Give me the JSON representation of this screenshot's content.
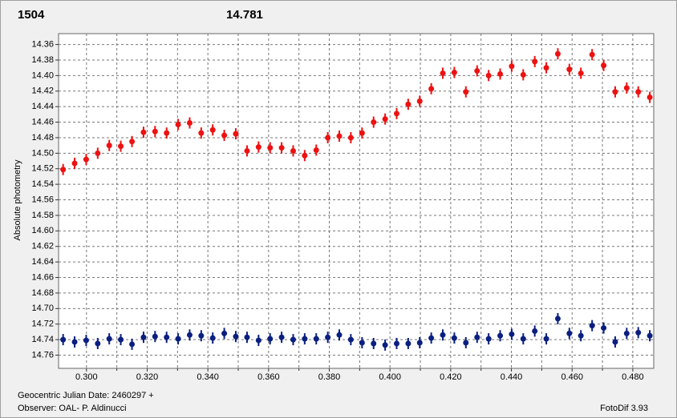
{
  "chart_data": {
    "type": "scatter",
    "series": [
      {
        "name": "1504",
        "color": "#ee1111",
        "values": [
          14.521,
          14.513,
          14.508,
          14.5,
          14.49,
          14.491,
          14.485,
          14.473,
          14.472,
          14.474,
          14.463,
          14.461,
          14.474,
          14.47,
          14.477,
          14.475,
          14.497,
          14.492,
          14.493,
          14.493,
          14.497,
          14.503,
          14.496,
          14.48,
          14.478,
          14.48,
          14.474,
          14.46,
          14.456,
          14.449,
          14.437,
          14.433,
          14.417,
          14.397,
          14.396,
          14.421,
          14.394,
          14.4,
          14.398,
          14.388,
          14.399,
          14.382,
          14.39,
          14.372,
          14.392,
          14.397,
          14.373,
          14.387,
          14.421,
          14.416,
          14.421,
          14.428
        ]
      },
      {
        "name": "14.781",
        "color": "#0a1f80",
        "values": [
          14.74,
          14.743,
          14.741,
          14.745,
          14.739,
          14.74,
          14.746,
          14.737,
          14.736,
          14.737,
          14.739,
          14.734,
          14.735,
          14.738,
          14.732,
          14.736,
          14.737,
          14.741,
          14.739,
          14.737,
          14.74,
          14.739,
          14.739,
          14.737,
          14.734,
          14.74,
          14.744,
          14.745,
          14.747,
          14.745,
          14.745,
          14.744,
          14.738,
          14.734,
          14.738,
          14.744,
          14.737,
          14.739,
          14.735,
          14.733,
          14.739,
          14.729,
          14.739,
          14.713,
          14.732,
          14.735,
          14.722,
          14.725,
          14.743,
          14.732,
          14.731,
          14.735
        ]
      }
    ],
    "x": [
      0.2923,
      0.2961,
      0.2999,
      0.3037,
      0.3075,
      0.3113,
      0.315,
      0.3188,
      0.3226,
      0.3264,
      0.3302,
      0.334,
      0.3378,
      0.3416,
      0.3454,
      0.3492,
      0.3529,
      0.3567,
      0.3605,
      0.3643,
      0.3681,
      0.3719,
      0.3757,
      0.3795,
      0.3833,
      0.3871,
      0.3908,
      0.3946,
      0.3984,
      0.4022,
      0.406,
      0.4098,
      0.4136,
      0.4174,
      0.4212,
      0.425,
      0.4287,
      0.4325,
      0.4363,
      0.4401,
      0.4439,
      0.4477,
      0.4515,
      0.4553,
      0.4591,
      0.4629,
      0.4666,
      0.4704,
      0.4742,
      0.478,
      0.4818,
      0.4856
    ],
    "ylabel": "Absolute photometry",
    "xlim": [
      0.2908,
      0.4869
    ],
    "ylim": [
      14.777,
      14.346
    ],
    "yticks": [
      14.36,
      14.38,
      {
        "value": 14.4,
        "label": "14.40"
      },
      14.42,
      14.44,
      14.46,
      14.48,
      {
        "value": 14.5,
        "label": "14.50"
      },
      14.52,
      14.54,
      14.56,
      14.58,
      {
        "value": 14.6,
        "label": "14.60"
      },
      14.62,
      14.64,
      14.66,
      14.68,
      {
        "value": 14.7,
        "label": "14.70"
      },
      14.72,
      14.74,
      14.76
    ],
    "xticks": [
      {
        "value": 0.3,
        "label": "0.300"
      },
      {
        "value": 0.32,
        "label": "0.320"
      },
      {
        "value": 0.34,
        "label": "0.340"
      },
      {
        "value": 0.36,
        "label": "0.360"
      },
      {
        "value": 0.38,
        "label": "0.380"
      },
      {
        "value": 0.4,
        "label": "0.400"
      },
      {
        "value": 0.42,
        "label": "0.420"
      },
      {
        "value": 0.44,
        "label": "0.440"
      },
      {
        "value": 0.46,
        "label": "0.460"
      },
      {
        "value": 0.48,
        "label": "0.480"
      }
    ],
    "xminorticks": [
      0.31,
      0.33,
      0.35,
      0.37,
      0.39,
      0.41,
      0.43,
      0.45,
      0.47
    ],
    "grid": true,
    "footer": {
      "date": "Geocentric Julian Date: 2460297 +",
      "observer": "Observer: OAL- P. Aldinucci",
      "software": "FotoDif 3.93"
    }
  }
}
